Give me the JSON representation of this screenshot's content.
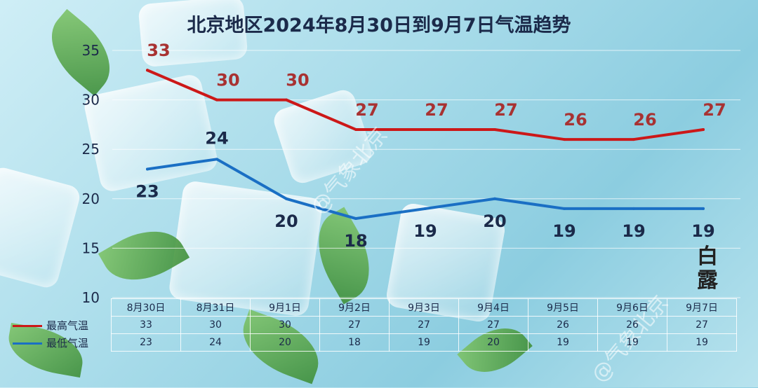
{
  "chart_data": {
    "type": "line",
    "title": "北京地区2024年8月30日到9月7日气温趋势",
    "categories": [
      "8月30日",
      "8月31日",
      "9月1日",
      "9月2日",
      "9月3日",
      "9月4日",
      "9月5日",
      "9月6日",
      "9月7日"
    ],
    "series": [
      {
        "name": "最高气温",
        "values": [
          33,
          30,
          30,
          27,
          27,
          27,
          26,
          26,
          27
        ],
        "color": "#cc1818",
        "label_color": "#a83232"
      },
      {
        "name": "最低气温",
        "values": [
          23,
          24,
          20,
          18,
          19,
          20,
          19,
          19,
          19
        ],
        "color": "#1a6fc4",
        "label_color": "#1b2a4a"
      }
    ],
    "ylim": [
      10,
      35
    ],
    "yticks": [
      10,
      15,
      20,
      25,
      30,
      35
    ],
    "grid": true,
    "legend": "bottom-left-table"
  },
  "watermark": "@气象北京",
  "seal_text": "白露"
}
